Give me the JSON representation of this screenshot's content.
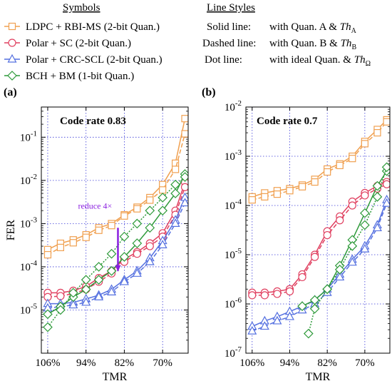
{
  "legend": {
    "symbols_title": "Symbols",
    "line_styles_title": "Line Styles",
    "entries": [
      {
        "label": "LDPC + RBI-MS (2-bit Quan.)",
        "color": "#f0a050",
        "marker": "square"
      },
      {
        "label": "Polar + SC (2-bit Quan.)",
        "color": "#e04060",
        "marker": "circle"
      },
      {
        "label": "Polar + CRC-SCL (2-bit Quan.)",
        "color": "#5570e0",
        "marker": "triangle"
      },
      {
        "label": "BCH + BM (1-bit Quan.)",
        "color": "#2e9a3a",
        "marker": "diamond"
      }
    ],
    "styles": [
      {
        "name": "Solid line:",
        "prefix": "with Quan. A & ",
        "sym": "Th",
        "sub": "A"
      },
      {
        "name": "Dashed line:",
        "prefix": "with Quan. B & ",
        "sym": "Th",
        "sub": "B"
      },
      {
        "name": "Dot line:",
        "prefix": "with ideal Quan. & ",
        "sym": "Th",
        "sub": "Ω"
      }
    ]
  },
  "chart_data": [
    {
      "type": "line",
      "panel_label": "(a)",
      "annotation": "Code rate 0.83",
      "arrow_label": "reduce 4×",
      "xlabel": "TMR",
      "ylabel": "FER",
      "y_scale": "log",
      "xlim": [
        108,
        62
      ],
      "ylim": [
        1e-06,
        0.5
      ],
      "x_ticks": [
        106,
        94,
        82,
        70
      ],
      "x_tick_labels": [
        "106%",
        "94%",
        "82%",
        "70%"
      ],
      "y_ticks": [
        1e-05,
        0.0001,
        0.001,
        0.01,
        0.1
      ],
      "grid": true,
      "series": [
        {
          "name": "LDPC + RBI-MS (2-bit Quan.)",
          "style": "solid",
          "x": [
            106,
            102,
            98,
            94,
            90,
            86,
            82,
            78,
            74,
            70,
            66,
            63
          ],
          "y": [
            0.00025,
            0.00035,
            0.00042,
            0.00055,
            0.0008,
            0.001,
            0.0016,
            0.0024,
            0.004,
            0.008,
            0.025,
            0.27
          ]
        },
        {
          "name": "LDPC + RBI-MS (2-bit Quan.)",
          "style": "dashed",
          "x": [
            106,
            102,
            98,
            94,
            90,
            86,
            82,
            78,
            74,
            70,
            66,
            63
          ],
          "y": [
            0.00019,
            0.00028,
            0.00036,
            0.00048,
            0.0007,
            0.0009,
            0.0015,
            0.0022,
            0.0035,
            0.006,
            0.018,
            0.12
          ]
        },
        {
          "name": "Polar + SC (2-bit Quan.)",
          "style": "solid",
          "x": [
            106,
            102,
            98,
            94,
            90,
            86,
            82,
            78,
            74,
            70,
            66,
            63
          ],
          "y": [
            2.5e-05,
            2.5e-05,
            2.8e-05,
            3.5e-05,
            5.5e-05,
            8e-05,
            0.00015,
            0.00022,
            0.00035,
            0.0006,
            0.002,
            0.009
          ]
        },
        {
          "name": "Polar + SC (2-bit Quan.)",
          "style": "dashed",
          "x": [
            106,
            102,
            98,
            94,
            90,
            86,
            82,
            78,
            74,
            70,
            66,
            63
          ],
          "y": [
            2e-05,
            2.1e-05,
            2.4e-05,
            3e-05,
            4.5e-05,
            7e-05,
            0.00013,
            0.0002,
            0.0003,
            0.0005,
            0.0016,
            0.007
          ]
        },
        {
          "name": "Polar + CRC-SCL (2-bit Quan.)",
          "style": "solid",
          "x": [
            106,
            102,
            98,
            94,
            90,
            86,
            82,
            78,
            74,
            70,
            66,
            63
          ],
          "y": [
            1.4e-05,
            1.4e-05,
            1.5e-05,
            1.8e-05,
            2.2e-05,
            3e-05,
            5e-05,
            8e-05,
            0.00016,
            0.0004,
            0.0012,
            0.004
          ]
        },
        {
          "name": "Polar + CRC-SCL (2-bit Quan.)",
          "style": "dashed",
          "x": [
            106,
            102,
            98,
            94,
            90,
            86,
            82,
            78,
            74,
            70,
            66,
            63
          ],
          "y": [
            1.1e-05,
            1.2e-05,
            1.3e-05,
            1.5e-05,
            2e-05,
            2.6e-05,
            4.5e-05,
            7e-05,
            0.00013,
            0.00032,
            0.001,
            0.003
          ]
        },
        {
          "name": "BCH + BM (1-bit Quan.)",
          "style": "solid",
          "x": [
            106,
            102,
            98,
            94,
            90,
            86,
            82,
            78,
            74,
            70,
            66,
            63
          ],
          "y": [
            8e-06,
            1.2e-05,
            2e-05,
            3e-05,
            5e-05,
            8e-05,
            0.00017,
            0.00035,
            0.0008,
            0.002,
            0.005,
            0.014
          ]
        },
        {
          "name": "BCH + BM (1-bit Quan.)",
          "style": "dotted",
          "x": [
            106,
            102,
            98,
            94,
            90,
            86,
            82,
            78,
            74,
            70,
            66,
            63
          ],
          "y": [
            4e-06,
            1e-05,
            2.5e-05,
            5e-05,
            0.0001,
            0.0002,
            0.0005,
            0.001,
            0.002,
            0.004,
            0.008,
            0.012
          ]
        }
      ]
    },
    {
      "type": "line",
      "panel_label": "(b)",
      "annotation": "Code rate 0.7",
      "xlabel": "TMR",
      "ylabel": "",
      "y_scale": "log",
      "xlim": [
        108,
        62
      ],
      "ylim": [
        1e-07,
        0.01
      ],
      "x_ticks": [
        106,
        94,
        82,
        70
      ],
      "x_tick_labels": [
        "106%",
        "94%",
        "82%",
        "70%"
      ],
      "y_ticks": [
        1e-07,
        1e-06,
        1e-05,
        0.0001,
        0.001,
        0.01
      ],
      "grid": true,
      "series": [
        {
          "name": "LDPC + RBI-MS (2-bit Quan.)",
          "style": "solid",
          "x": [
            106,
            102,
            98,
            94,
            90,
            86,
            82,
            78,
            74,
            70,
            66,
            63
          ],
          "y": [
            0.00015,
            0.00018,
            0.0002,
            0.00022,
            0.00026,
            0.00034,
            0.00055,
            0.0007,
            0.001,
            0.002,
            0.0035,
            0.0055
          ]
        },
        {
          "name": "LDPC + RBI-MS (2-bit Quan.)",
          "style": "dashed",
          "x": [
            106,
            102,
            98,
            94,
            90,
            86,
            82,
            78,
            74,
            70,
            66,
            63
          ],
          "y": [
            0.00013,
            0.00015,
            0.00017,
            0.0002,
            0.00024,
            0.0003,
            0.00048,
            0.00065,
            0.0009,
            0.0018,
            0.003,
            0.005
          ]
        },
        {
          "name": "Polar + SC (2-bit Quan.)",
          "style": "solid",
          "x": [
            106,
            102,
            98,
            94,
            90,
            86,
            82,
            78,
            74,
            70,
            66,
            63
          ],
          "y": [
            1.7e-06,
            1.7e-06,
            1.8e-06,
            2e-06,
            4e-06,
            1e-05,
            3e-05,
            6e-05,
            0.00012,
            0.00018,
            0.00025,
            0.0003
          ]
        },
        {
          "name": "Polar + SC (2-bit Quan.)",
          "style": "dashed",
          "x": [
            106,
            102,
            98,
            94,
            90,
            86,
            82,
            78,
            74,
            70,
            66,
            63
          ],
          "y": [
            1.5e-06,
            1.5e-06,
            1.6e-06,
            1.8e-06,
            3.5e-06,
            9e-06,
            2.5e-05,
            5e-05,
            0.0001,
            0.00016,
            0.00022,
            0.00027
          ]
        },
        {
          "name": "Polar + CRC-SCL (2-bit Quan.)",
          "style": "solid",
          "x": [
            106,
            102,
            98,
            94,
            90,
            86,
            82,
            78,
            74,
            70,
            66,
            63
          ],
          "y": [
            3.5e-07,
            4.5e-07,
            5.5e-07,
            7e-07,
            9e-07,
            1.2e-06,
            2e-06,
            4e-06,
            8e-06,
            1.5e-05,
            4e-05,
            0.00013
          ]
        },
        {
          "name": "Polar + CRC-SCL (2-bit Quan.)",
          "style": "dashed",
          "x": [
            106,
            102,
            98,
            94,
            90,
            86,
            82,
            78,
            74,
            70,
            66,
            63
          ],
          "y": [
            2.8e-07,
            3.5e-07,
            4.5e-07,
            5.5e-07,
            7.5e-07,
            1e-06,
            1.7e-06,
            3.5e-06,
            7e-06,
            1.3e-05,
            3.5e-05,
            0.00011
          ]
        },
        {
          "name": "BCH + BM (1-bit Quan.)",
          "style": "solid",
          "x": [
            90,
            86,
            82,
            78,
            74,
            70,
            66,
            63
          ],
          "y": [
            9e-07,
            1.2e-06,
            2e-06,
            6e-06,
            2e-05,
            7e-05,
            0.00025,
            0.0005
          ]
        },
        {
          "name": "BCH + BM (1-bit Quan.)",
          "style": "dotted",
          "x": [
            88,
            86,
            82,
            78,
            74,
            70,
            66,
            63
          ],
          "y": [
            2.5e-07,
            8e-07,
            2e-06,
            5e-06,
            1.5e-05,
            4e-05,
            0.00015,
            0.0006
          ]
        }
      ]
    }
  ]
}
